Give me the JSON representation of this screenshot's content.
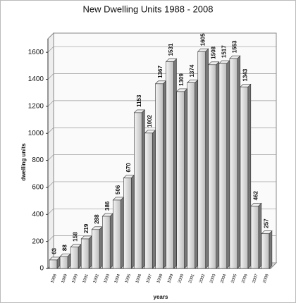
{
  "chart_data": {
    "type": "bar",
    "title": "New Dwelling Units 1988 - 2008",
    "x_label": "years",
    "y_label": "dwelling units",
    "categories": [
      "1988",
      "1989",
      "1990",
      "1991",
      "1992",
      "1993",
      "1994",
      "1995",
      "1996",
      "1997",
      "1998",
      "1999",
      "2000",
      "2001",
      "2002",
      "2003",
      "2004",
      "2005",
      "2006",
      "2007",
      "2008"
    ],
    "values": [
      63,
      88,
      158,
      219,
      288,
      386,
      506,
      670,
      1153,
      1002,
      1367,
      1531,
      1309,
      1374,
      1605,
      1508,
      1517,
      1553,
      1343,
      462,
      257
    ],
    "color": "#d8d8d8",
    "ylim": [
      0,
      1700
    ],
    "yticks": [
      0,
      200,
      400,
      600,
      800,
      1000,
      1200,
      1400,
      1600
    ],
    "grid": true
  }
}
